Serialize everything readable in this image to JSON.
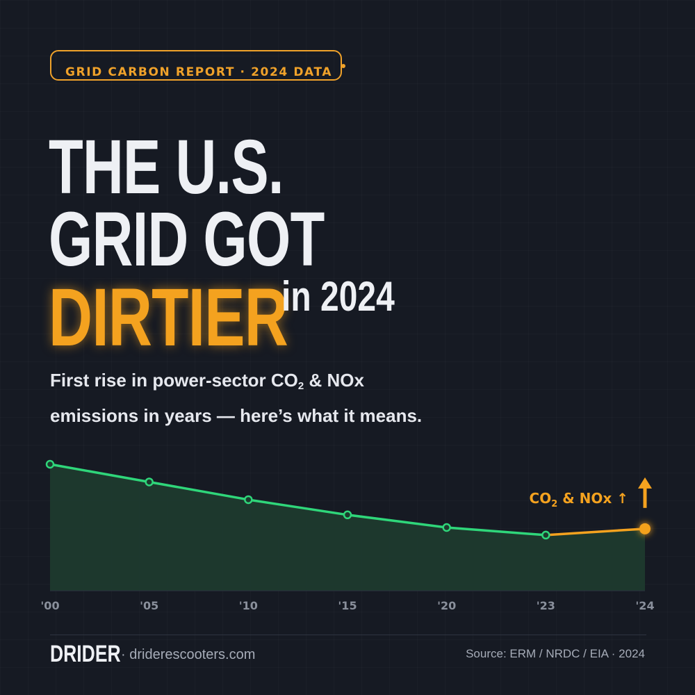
{
  "badge": {
    "text": "GRID CARBON REPORT  ·  2024 DATA"
  },
  "headline": {
    "line1": "THE U.S.",
    "line2": "GRID GOT",
    "highlight": "DIRTIER",
    "suffix": "in 2024"
  },
  "subtitle": {
    "line1_pre": "First rise in power-sector CO",
    "line1_sub": "2",
    "line1_post": " & NOx",
    "line2": "emissions in years — here’s what it means."
  },
  "colors": {
    "background": "#161a23",
    "accent": "#f4a21f",
    "trend_line": "#2fd67a",
    "area_fill": "#1d3a2e",
    "text": "#eef0f4",
    "muted": "#8a909c"
  },
  "chart_data": {
    "type": "line",
    "x": [
      "'00",
      "'05",
      "'10",
      "'15",
      "'20",
      "'23",
      "'24"
    ],
    "series": [
      {
        "values": [
          100,
          86,
          72,
          60,
          50,
          44,
          49
        ]
      }
    ],
    "ylim": [
      0,
      100
    ],
    "highlight_from_index": 5,
    "annotation": {
      "pre": "CO",
      "sub": "2",
      "post": " & NOx",
      "arrow": "↑"
    },
    "title": "",
    "xlabel": "",
    "ylabel": "",
    "grid": false
  },
  "footer": {
    "brand": "DRIDER",
    "site": "· driderescooters.com",
    "source": "Source: ERM / NRDC / EIA · 2024"
  }
}
